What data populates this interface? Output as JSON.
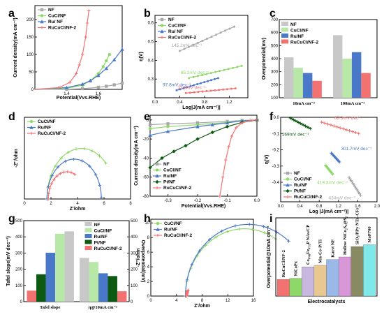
{
  "colors": {
    "NF": "#a8a8a8",
    "CuCl": "#8ed86a",
    "Ru": "#4a78c8",
    "Pt": "#0d5a12",
    "RuCuCl": "#f27272"
  },
  "panels": {
    "a": "a",
    "b": "b",
    "c": "c",
    "d": "d",
    "e": "e",
    "f": "f",
    "g": "g",
    "h": "h",
    "i": "i"
  },
  "chart_data": [
    {
      "id": "a",
      "type": "line",
      "xlabel": "Potential(Vvs.RHE)",
      "ylabel": "Current density(mA cm⁻²)",
      "xlim": [
        1.2,
        1.75
      ],
      "ylim": [
        0,
        240
      ],
      "xticks": [
        1.4,
        1.6
      ],
      "yticks": [
        0,
        50,
        100,
        150,
        200
      ],
      "legend_position": "top-left",
      "series": [
        {
          "name": "NF",
          "color": "#a8a8a8",
          "marker": "square",
          "x": [
            1.2,
            1.4,
            1.5,
            1.6,
            1.65,
            1.7,
            1.75
          ],
          "y": [
            0,
            0.5,
            2,
            6,
            9,
            13,
            18
          ]
        },
        {
          "name": "CuCl/NF",
          "color": "#8ed86a",
          "marker": "circle",
          "x": [
            1.2,
            1.4,
            1.5,
            1.55,
            1.6,
            1.63,
            1.65,
            1.67
          ],
          "y": [
            0,
            3,
            12,
            25,
            45,
            65,
            82,
            100
          ]
        },
        {
          "name": "Ru/ NF",
          "color": "#4a78c8",
          "marker": "triangle",
          "x": [
            1.2,
            1.4,
            1.5,
            1.55,
            1.6,
            1.65,
            1.7,
            1.75
          ],
          "y": [
            0,
            5,
            15,
            25,
            40,
            60,
            85,
            115
          ]
        },
        {
          "name": "RuCuCl/NF-2",
          "color": "#f27272",
          "marker": "cross",
          "x": [
            1.2,
            1.35,
            1.42,
            1.46,
            1.48,
            1.5,
            1.52,
            1.53,
            1.54
          ],
          "y": [
            0,
            5,
            20,
            45,
            70,
            100,
            150,
            190,
            225
          ]
        }
      ]
    },
    {
      "id": "b",
      "type": "scatter",
      "xlabel": "Log|J(mA cm⁻²)|",
      "ylabel": "η(V)",
      "xlim": [
        0,
        1.5
      ],
      "ylim": [
        0.2,
        0.64
      ],
      "xticks": [
        0.0,
        0.4,
        0.8,
        1.2
      ],
      "yticks": [
        0.3,
        0.4,
        0.5,
        0.6
      ],
      "legend_position": "top-left",
      "series": [
        {
          "name": "NF",
          "color": "#a8a8a8",
          "slope_label": "145.2mV dec⁻¹",
          "x": [
            0.4,
            1.28
          ],
          "y": [
            0.45,
            0.58
          ]
        },
        {
          "name": "CuCl/NF",
          "color": "#8ed86a",
          "slope_label": "85.2mV dec⁻¹",
          "x": [
            0.55,
            1.4
          ],
          "y": [
            0.305,
            0.37
          ]
        },
        {
          "name": "Ru/ NF",
          "color": "#4a78c8",
          "slope_label": "97.8mV dec⁻¹",
          "x": [
            0.35,
            1.02
          ],
          "y": [
            0.24,
            0.305
          ]
        },
        {
          "name": "RuCuCl/NF-2",
          "color": "#f27272",
          "slope_label": "33.5mV dec⁻¹",
          "x": [
            0.5,
            1.3
          ],
          "y": [
            0.225,
            0.25
          ]
        }
      ]
    },
    {
      "id": "c",
      "type": "bar",
      "xlabel": "",
      "ylabel": "Overpotential(mv)",
      "categories": [
        "10mA cm⁻²",
        "100mA cm⁻²"
      ],
      "ylim": [
        100,
        700
      ],
      "yticks": [
        100,
        200,
        300,
        400,
        500,
        600,
        700
      ],
      "legend_position": "top-left",
      "series": [
        {
          "name": "NF",
          "color": "#c8c8c8",
          "values": [
            410,
            580
          ]
        },
        {
          "name": "CuCl/NF",
          "color": "#b8e8a8",
          "values": [
            330,
            400
          ]
        },
        {
          "name": "Ru/NF",
          "color": "#4a78c8",
          "values": [
            290,
            450
          ]
        },
        {
          "name": "RuCuCl/NF-2",
          "color": "#f27272",
          "values": [
            230,
            290
          ]
        }
      ]
    },
    {
      "id": "d",
      "type": "scatter",
      "xlabel": "Z'/ohm",
      "ylabel": "-Z''/ohm",
      "xlim": [
        0,
        8
      ],
      "ylim": [
        0,
        4.2
      ],
      "xticks": [
        0,
        2,
        4,
        6,
        8
      ],
      "yticks": [],
      "legend_position": "top-left",
      "series": [
        {
          "name": "CuCl/NF",
          "color": "#8ed86a",
          "center": 4.3,
          "radius": 2.6,
          "end_angle": 45
        },
        {
          "name": "Ru/NF",
          "color": "#4a78c8",
          "center": 3.75,
          "radius": 2.05,
          "end_angle": 2
        },
        {
          "name": "RuCuCl/NF-2",
          "color": "#f27272",
          "center": 3.2,
          "radius": 1.4,
          "end_angle": 65
        }
      ]
    },
    {
      "id": "e",
      "type": "line",
      "xlabel": "Potential(Vvs.RHE)",
      "ylabel": "Current density(mA cm⁻²)",
      "xlim": [
        -0.36,
        0
      ],
      "ylim": [
        -80,
        5
      ],
      "xticks": [
        -0.3,
        -0.2,
        -0.1,
        0.0
      ],
      "yticks": [
        0,
        -20,
        -40,
        -60,
        -80
      ],
      "legend_position": "bottom-left",
      "series": [
        {
          "name": "NF",
          "color": "#a8a8a8",
          "marker": "square",
          "x": [
            -0.36,
            -0.3,
            -0.2,
            -0.1,
            -0.05,
            0
          ],
          "y": [
            -5,
            -4,
            -3,
            -1.5,
            -0.5,
            0
          ]
        },
        {
          "name": "CuCl/NF",
          "color": "#8ed86a",
          "marker": "circle",
          "x": [
            -0.36,
            -0.3,
            -0.2,
            -0.1,
            -0.05,
            0
          ],
          "y": [
            -9,
            -7,
            -5,
            -2.5,
            -1,
            0
          ]
        },
        {
          "name": "Ru/NF",
          "color": "#4a78c8",
          "marker": "triangle",
          "x": [
            -0.36,
            -0.3,
            -0.2,
            -0.15,
            -0.1,
            -0.05,
            0
          ],
          "y": [
            -16,
            -12,
            -7,
            -5,
            -3,
            -1,
            0
          ]
        },
        {
          "name": "Pt/NF",
          "color": "#0d5a12",
          "marker": "diamond",
          "x": [
            -0.36,
            -0.32,
            -0.28,
            -0.24,
            -0.2,
            -0.15,
            -0.1,
            -0.05,
            0
          ],
          "y": [
            -50,
            -40,
            -33,
            -27,
            -20,
            -13,
            -7,
            -2.5,
            0
          ]
        },
        {
          "name": "RuCuCl/NF-2",
          "color": "#f27272",
          "marker": "cross",
          "x": [
            -0.125,
            -0.115,
            -0.105,
            -0.095,
            -0.085,
            -0.07,
            -0.05,
            -0.02,
            0
          ],
          "y": [
            -80,
            -60,
            -42,
            -28,
            -17,
            -8,
            -3,
            -0.5,
            0
          ]
        }
      ]
    },
    {
      "id": "f",
      "type": "scatter",
      "xlabel": "Log |J(mA cm⁻²)|",
      "ylabel": "η(V)",
      "xlim": [
        0,
        2
      ],
      "ylim": [
        -0.52,
        0
      ],
      "xticks": [
        0.0,
        0.4,
        0.8,
        1.2,
        1.6,
        2.0
      ],
      "yticks": [
        0.0,
        -0.1,
        -0.2,
        -0.3,
        -0.4
      ],
      "legend_position": "bottom-left",
      "series": [
        {
          "name": "NF",
          "color": "#a8a8a8",
          "slope_label": "434mV dec⁻¹",
          "x": [
            1.42,
            1.66
          ],
          "y": [
            -0.37,
            -0.48
          ]
        },
        {
          "name": "CuCl/NF",
          "color": "#8ed86a",
          "slope_label": "419.3mV dec⁻¹",
          "x": [
            0.93,
            1.08
          ],
          "y": [
            -0.295,
            -0.35
          ]
        },
        {
          "name": "Ru/NF",
          "color": "#4a78c8",
          "slope_label": "301.7mV dec⁻¹",
          "x": [
            1.05,
            1.22
          ],
          "y": [
            -0.22,
            -0.275
          ]
        },
        {
          "name": "Pt/NF",
          "color": "#0d5a12",
          "slope_label": "169mV dec⁻¹",
          "x": [
            0.2,
            0.62
          ],
          "y": [
            -0.005,
            -0.07
          ]
        },
        {
          "name": "RuCuCl/NF-2",
          "color": "#f27272",
          "slope_label": "68.3mV dec⁻¹",
          "x": [
            0.85,
            1.62
          ],
          "y": [
            -0.03,
            -0.1
          ]
        }
      ]
    },
    {
      "id": "g",
      "type": "bar",
      "xlabel": "",
      "ylabel": "Tafel slope(mV dec⁻¹)",
      "ylabel2": "Overpotential(mV)",
      "categories": [
        "Tafel slope",
        "η@10mA cm⁻²"
      ],
      "ylim": [
        0,
        500
      ],
      "yticks": [
        0,
        100,
        200,
        300,
        400,
        500
      ],
      "ylim2": [
        0,
        500
      ],
      "yticks2": [
        0,
        100,
        200,
        300,
        400,
        500
      ],
      "legend_position": "top-right",
      "series": [
        {
          "name": "NF",
          "color": "#c8c8c8",
          "values": [
            434,
            270
          ]
        },
        {
          "name": "CuCl/NF",
          "color": "#b8e8a8",
          "values": [
            419,
            245
          ]
        },
        {
          "name": "Ru/NF",
          "color": "#4a78c8",
          "values": [
            302,
            175
          ]
        },
        {
          "name": "Pt/NF",
          "color": "#0d5a12",
          "values": [
            169,
            158
          ]
        },
        {
          "name": "RuCuCl/NF-2",
          "color": "#f27272",
          "values": [
            68,
            64
          ]
        }
      ]
    },
    {
      "id": "h",
      "type": "scatter",
      "xlabel": "Z'/ohm",
      "ylabel": "-Z''/ohm",
      "xlim": [
        0,
        16
      ],
      "ylim": [
        0,
        10.5
      ],
      "xticks": [
        0,
        4,
        8,
        12,
        16
      ],
      "yticks": [
        0,
        2,
        4,
        6,
        8,
        10
      ],
      "legend_position": "top-left",
      "series": [
        {
          "name": "CuCl/NF",
          "color": "#8ed86a",
          "center": 14.6,
          "radius": 9.2,
          "end_angle": 58
        },
        {
          "name": "Ru/NF",
          "color": "#4a78c8",
          "center": 15.2,
          "radius": 9.8,
          "end_angle": 50
        },
        {
          "name": "RuCuCl/NF-2",
          "color": "#f27272",
          "center": 7.2,
          "radius": 1.6,
          "end_angle": 150
        }
      ]
    },
    {
      "id": "i",
      "type": "bar",
      "xlabel": "Electrocatalysts",
      "ylabel": "Overpotential@10mA cm⁻²",
      "categories": [
        "RuCuCl/NF-2",
        "NiCoPx",
        "Co₀.₆₈Fe₀.₃₂P NAs/CP",
        "Mn-Co-P/Ti",
        "Karst NF",
        "Hollow NiCo₂S₄@S₂",
        "SiO₂/PPy NTs–CFs",
        "MoP700"
      ],
      "ylim": [
        0,
        300
      ],
      "series": [
        {
          "name": "Overpotential@10mA cm⁻²",
          "colors": [
            "#f27272",
            "#8ed86a",
            "#c8b8e0",
            "#e8c890",
            "#9ab8e8",
            "#d898d8",
            "#8a8a62",
            "#80e8e8"
          ],
          "values": [
            64,
            68,
            112,
            118,
            140,
            150,
            190,
            197
          ]
        }
      ]
    }
  ]
}
